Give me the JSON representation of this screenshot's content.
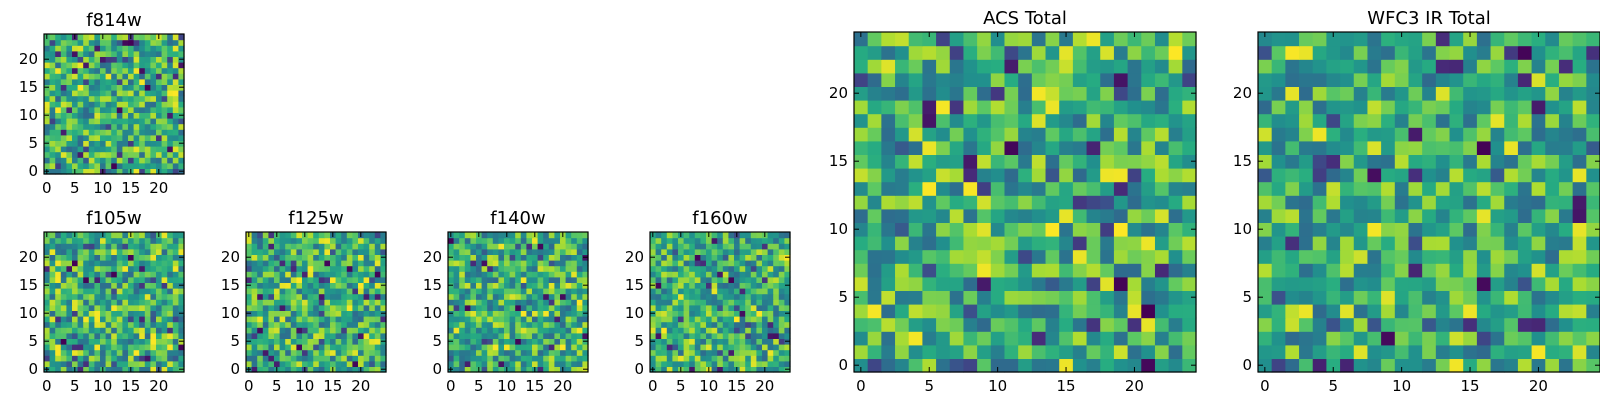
{
  "chart_data": [
    {
      "type": "heatmap",
      "title": "f814w",
      "grid": [
        25,
        25
      ],
      "colormap": "viridis",
      "seed": 11,
      "xticks": [
        "0",
        "5",
        "10",
        "15",
        "20"
      ],
      "yticks": [
        "0",
        "5",
        "10",
        "15",
        "20"
      ],
      "xlim": [
        0,
        25
      ],
      "ylim": [
        0,
        25
      ]
    },
    {
      "type": "heatmap",
      "title": "f105w",
      "grid": [
        25,
        25
      ],
      "colormap": "viridis",
      "seed": 23,
      "xticks": [
        "0",
        "5",
        "10",
        "15",
        "20"
      ],
      "yticks": [
        "0",
        "5",
        "10",
        "15",
        "20"
      ],
      "xlim": [
        0,
        25
      ],
      "ylim": [
        0,
        25
      ]
    },
    {
      "type": "heatmap",
      "title": "f125w",
      "grid": [
        25,
        25
      ],
      "colormap": "viridis",
      "seed": 37,
      "xticks": [
        "0",
        "5",
        "10",
        "15",
        "20"
      ],
      "yticks": [
        "0",
        "5",
        "10",
        "15",
        "20"
      ],
      "xlim": [
        0,
        25
      ],
      "ylim": [
        0,
        25
      ]
    },
    {
      "type": "heatmap",
      "title": "f140w",
      "grid": [
        25,
        25
      ],
      "colormap": "viridis",
      "seed": 41,
      "xticks": [
        "0",
        "5",
        "10",
        "15",
        "20"
      ],
      "yticks": [
        "0",
        "5",
        "10",
        "15",
        "20"
      ],
      "xlim": [
        0,
        25
      ],
      "ylim": [
        0,
        25
      ]
    },
    {
      "type": "heatmap",
      "title": "f160w",
      "grid": [
        25,
        25
      ],
      "colormap": "viridis",
      "seed": 53,
      "xticks": [
        "0",
        "5",
        "10",
        "15",
        "20"
      ],
      "yticks": [
        "0",
        "5",
        "10",
        "15",
        "20"
      ],
      "xlim": [
        0,
        25
      ],
      "ylim": [
        0,
        25
      ]
    },
    {
      "type": "heatmap",
      "title": "ACS Total",
      "grid": [
        25,
        25
      ],
      "colormap": "viridis",
      "seed": 67,
      "xticks": [
        "0",
        "5",
        "10",
        "15",
        "20"
      ],
      "yticks": [
        "0",
        "5",
        "10",
        "15",
        "20"
      ],
      "xlim": [
        0,
        25
      ],
      "ylim": [
        0,
        25
      ]
    },
    {
      "type": "heatmap",
      "title": "WFC3 IR Total",
      "grid": [
        25,
        25
      ],
      "colormap": "viridis",
      "seed": 79,
      "xticks": [
        "0",
        "5",
        "10",
        "15",
        "20"
      ],
      "yticks": [
        "0",
        "5",
        "10",
        "15",
        "20"
      ],
      "xlim": [
        0,
        25
      ],
      "ylim": [
        0,
        25
      ]
    }
  ]
}
